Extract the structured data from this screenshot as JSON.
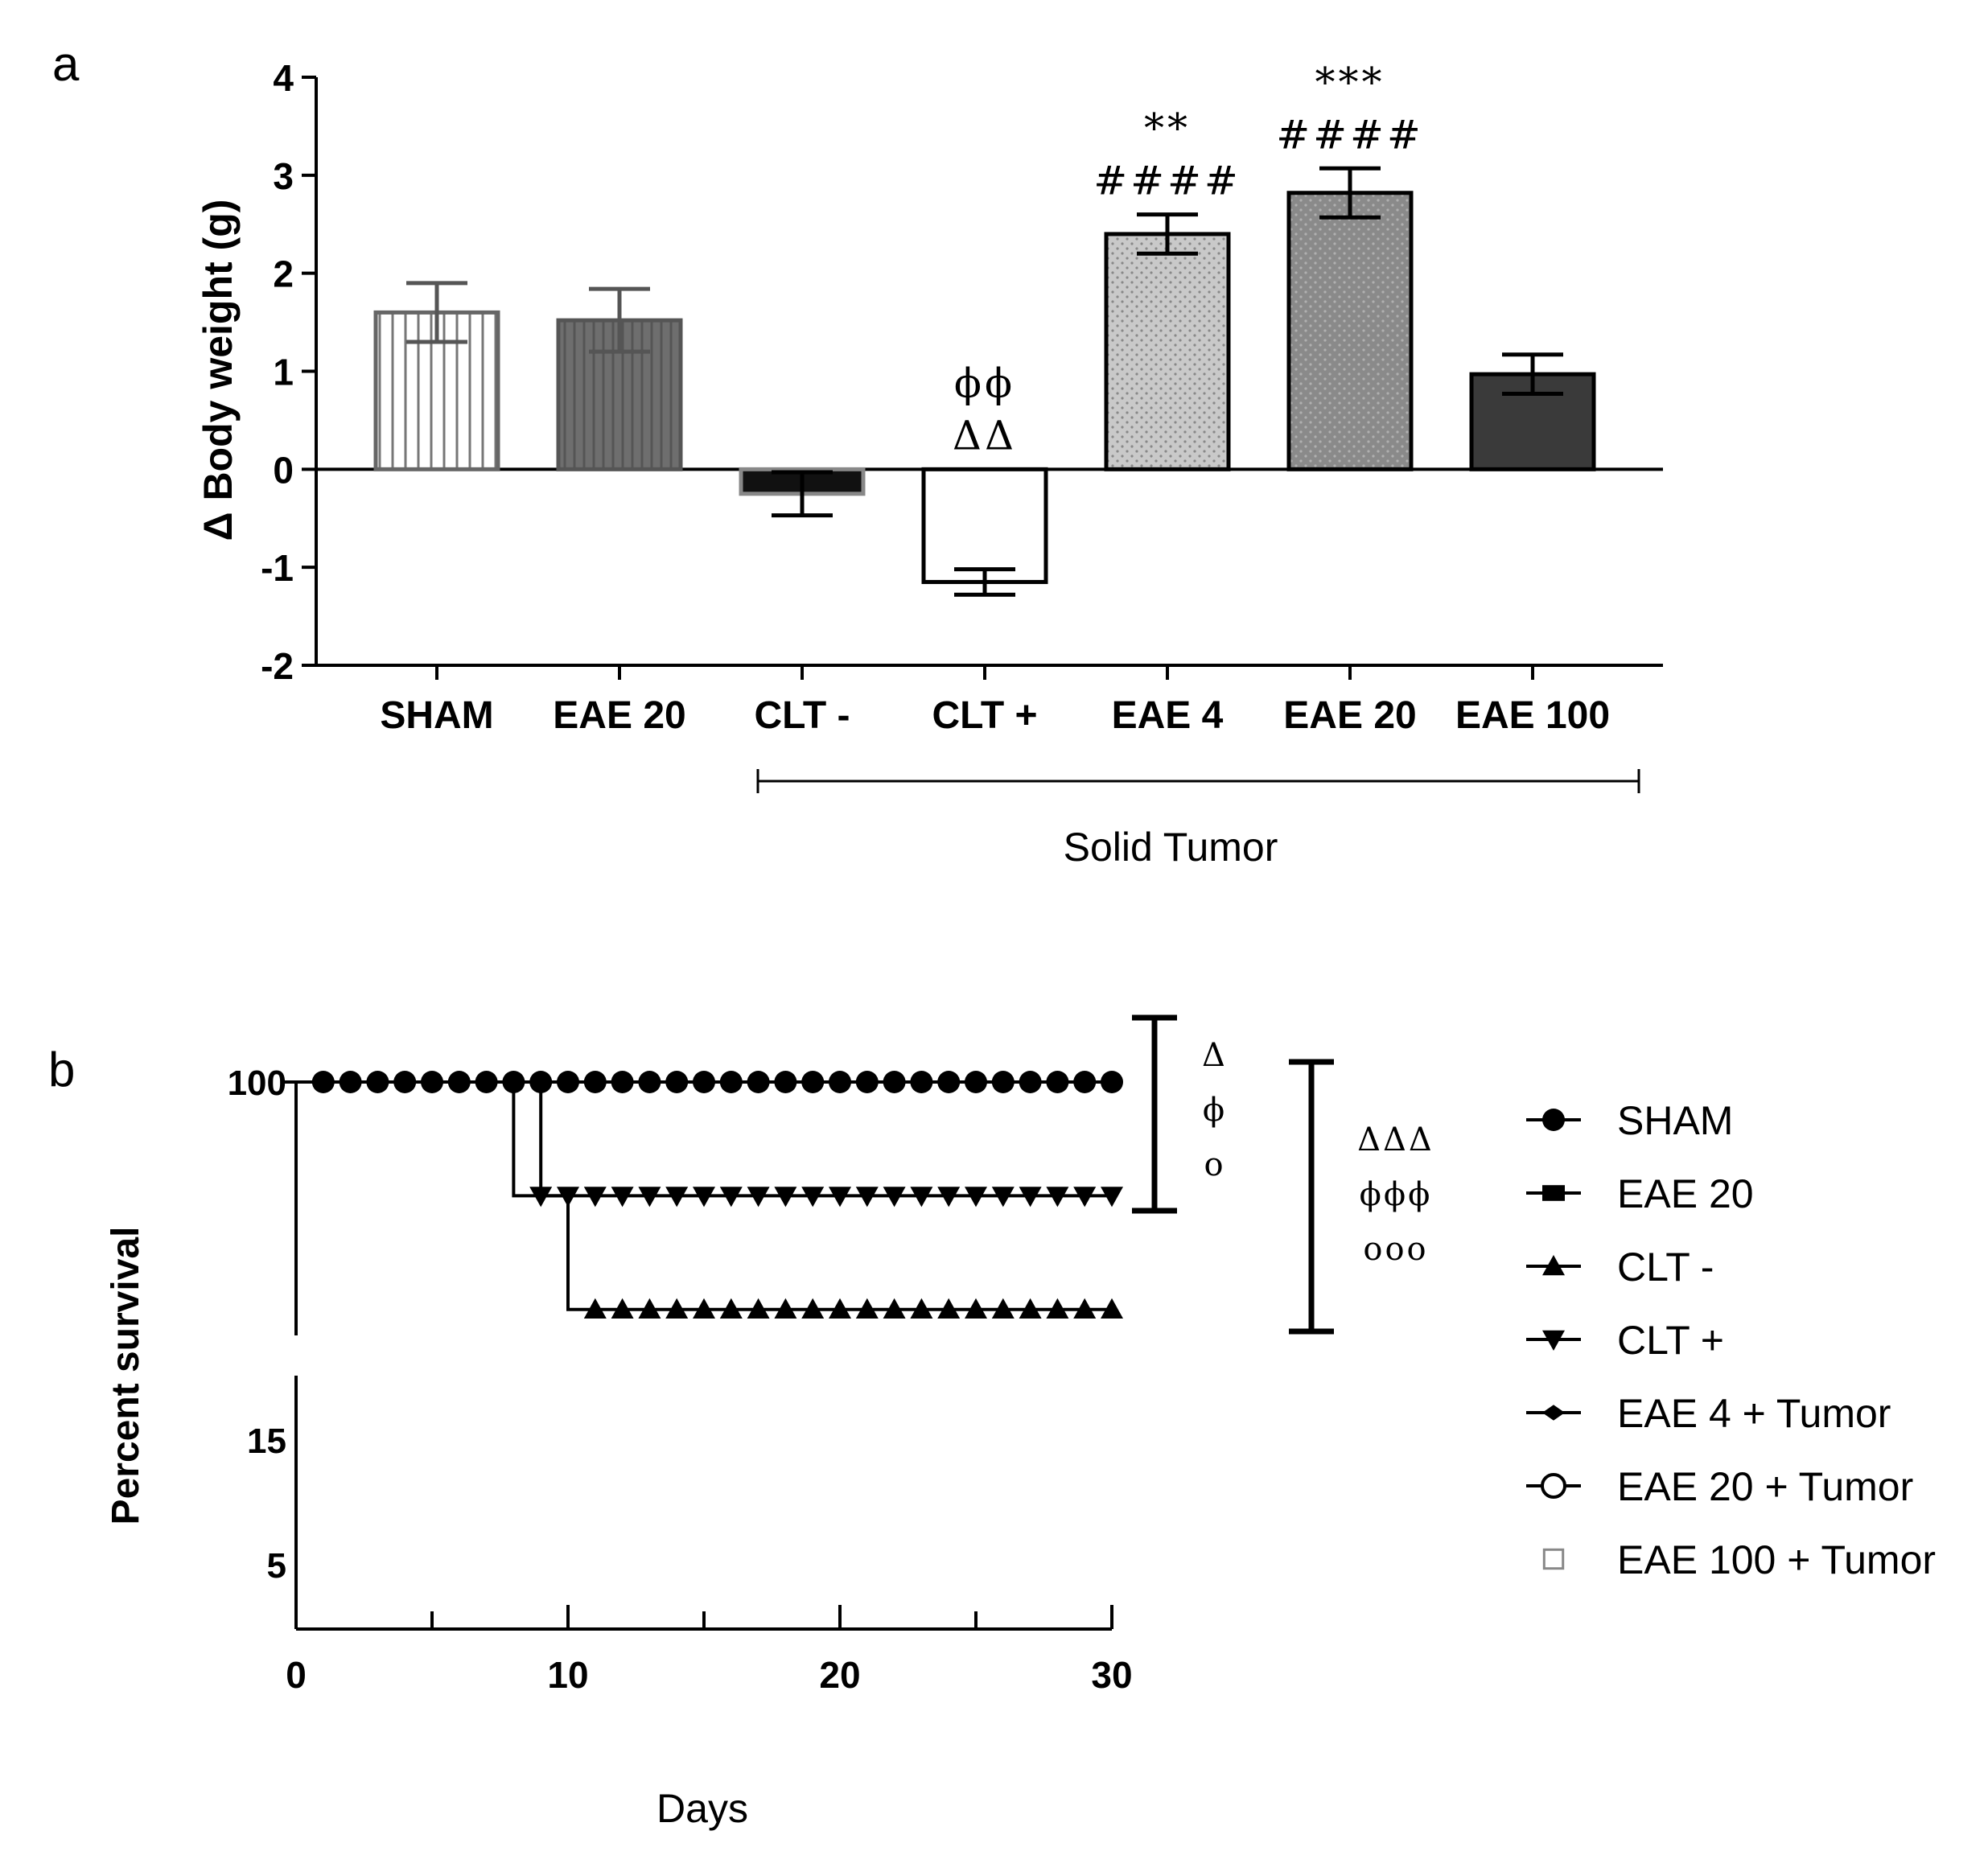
{
  "colors": {
    "axis": "#000000",
    "text": "#000000",
    "annotation": "#333333"
  },
  "chart_data": [
    {
      "panel": "a",
      "type": "bar",
      "ylabel": "Δ Body weight (g)",
      "ylim": [
        -2,
        4
      ],
      "yticks": [
        "4",
        "3",
        "2",
        "1",
        "0",
        "-1",
        "-2"
      ],
      "categories": [
        "SHAM",
        "EAE 20",
        "CLT -",
        "CLT +",
        "EAE 4",
        "EAE 20",
        "EAE 100"
      ],
      "values": [
        1.6,
        1.52,
        -0.25,
        -1.15,
        2.4,
        2.82,
        0.97
      ],
      "errors": [
        0.3,
        0.32,
        0.22,
        0.13,
        0.2,
        0.25,
        0.2
      ],
      "fills": [
        "stripes",
        "dark-gray-stripes",
        "black",
        "white",
        "light-dots",
        "gray-dots",
        "dark"
      ],
      "annotations": [
        {
          "category_index": 3,
          "lines": [
            "ϕϕ",
            "ΔΔ"
          ]
        },
        {
          "category_index": 4,
          "lines": [
            "**",
            "####"
          ]
        },
        {
          "category_index": 5,
          "lines": [
            "***",
            "####"
          ]
        }
      ],
      "group_label": {
        "text": "Solid Tumor",
        "from_index": 2,
        "to_index": 6
      }
    },
    {
      "panel": "b",
      "type": "line",
      "subtype": "kaplan-meier",
      "xlabel": "Days",
      "ylabel": "Percent survival",
      "xlim": [
        0,
        30
      ],
      "xticks": [
        "0",
        "10",
        "20",
        "30"
      ],
      "yticks_shown": [
        "100",
        "15",
        "5"
      ],
      "axis_break": true,
      "series": [
        {
          "name": "SHAM",
          "marker": "circle",
          "x": [
            1,
            2,
            3,
            4,
            5,
            6,
            7,
            8,
            9,
            10,
            11,
            12,
            13,
            14,
            15,
            16,
            17,
            18,
            19,
            20,
            21,
            22,
            23,
            24,
            25,
            26,
            27,
            28,
            29,
            30
          ],
          "y": 100
        },
        {
          "name": "EAE 20",
          "marker": "square",
          "x": [
            1,
            2,
            3,
            4,
            5,
            6,
            7,
            8,
            9,
            10,
            11,
            12,
            13,
            14,
            15,
            16,
            17,
            18,
            19,
            20,
            21,
            22,
            23,
            24,
            25,
            26,
            27,
            28,
            29,
            30
          ],
          "y": 100
        },
        {
          "name": "CLT -",
          "marker": "triangle-up",
          "steps": [
            [
              0,
              100
            ],
            [
              8,
              100
            ],
            [
              8,
              80
            ],
            [
              10,
              80
            ],
            [
              10,
              60
            ],
            [
              30,
              60
            ]
          ],
          "x": [
            11,
            12,
            13,
            14,
            15,
            16,
            17,
            18,
            19,
            20,
            21,
            22,
            23,
            24,
            25,
            26,
            27,
            28,
            29,
            30
          ],
          "y": 60
        },
        {
          "name": "CLT +",
          "marker": "triangle-down",
          "steps": [
            [
              0,
              100
            ],
            [
              9,
              100
            ],
            [
              9,
              80
            ],
            [
              30,
              80
            ]
          ],
          "x": [
            9,
            10,
            11,
            12,
            13,
            14,
            15,
            16,
            17,
            18,
            19,
            20,
            21,
            22,
            23,
            24,
            25,
            26,
            27,
            28,
            29,
            30
          ],
          "y": 80
        },
        {
          "name": "EAE 4 + Tumor",
          "marker": "diamond",
          "y": 100
        },
        {
          "name": "EAE 20 + Tumor",
          "marker": "open-circle",
          "y": 100
        },
        {
          "name": "EAE 100 + Tumor",
          "marker": "open-square",
          "y": 100
        }
      ],
      "brackets": [
        {
          "from": 100,
          "to": 80,
          "lines": [
            "Δ",
            "ϕ",
            "o"
          ]
        },
        {
          "from": 100,
          "to": 60,
          "lines": [
            "ΔΔΔ",
            "ϕϕϕ",
            "ooo"
          ]
        }
      ]
    }
  ],
  "panels": {
    "a": "a",
    "b": "b"
  }
}
